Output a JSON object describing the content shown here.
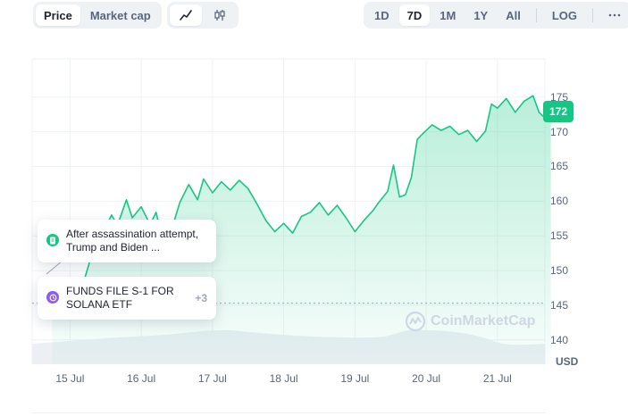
{
  "toolbar": {
    "view_tabs": [
      {
        "label": "Price",
        "active": true
      },
      {
        "label": "Market cap",
        "active": false
      }
    ],
    "chart_types": [
      {
        "icon": "line-chart-icon",
        "active": true
      },
      {
        "icon": "candlestick-icon",
        "active": false
      }
    ],
    "ranges": [
      {
        "label": "1D",
        "active": false
      },
      {
        "label": "7D",
        "active": true
      },
      {
        "label": "1M",
        "active": false
      },
      {
        "label": "1Y",
        "active": false
      },
      {
        "label": "All",
        "active": false
      }
    ],
    "log_label": "LOG",
    "more_icon": "more-dots-icon"
  },
  "news": [
    {
      "icon": "document-icon",
      "icon_color": "#16c784",
      "text": "After assassination attempt, Trump and Biden ..."
    },
    {
      "icon": "clock-icon",
      "icon_color": "#8b5cf6",
      "text": "FUNDS FILE S-1 FOR SOLANA ETF",
      "more": "+3"
    }
  ],
  "watermark": "CoinMarketCap",
  "current_price": "172",
  "currency": "USD",
  "colors": {
    "accent": "#16c784",
    "text_muted": "#58667e",
    "grid": "#eff2f5"
  },
  "chart_data": {
    "type": "area",
    "title": "",
    "xlabel": "",
    "ylabel": "",
    "x_ticks": [
      "15 Jul",
      "16 Jul",
      "17 Jul",
      "18 Jul",
      "19 Jul",
      "20 Jul",
      "21 Jul"
    ],
    "y_ticks": [
      140,
      145,
      150,
      155,
      160,
      165,
      170,
      175
    ],
    "ylim": [
      136.5,
      180.5
    ],
    "reference_line": 145.3,
    "current_value": 172,
    "series": [
      {
        "x": [
          "2024-07-14 18:00",
          "2024-07-14 19:00",
          "2024-07-14 21:00",
          "2024-07-15 00:00",
          "2024-07-15 04:00",
          "2024-07-15 07:00",
          "2024-07-15 09:00",
          "2024-07-15 12:00",
          "2024-07-15 14:00",
          "2024-07-15 16:00",
          "2024-07-15 19:00",
          "2024-07-15 21:00",
          "2024-07-16 00:00",
          "2024-07-16 03:00",
          "2024-07-16 05:00",
          "2024-07-16 07:00",
          "2024-07-16 10:00",
          "2024-07-16 13:00",
          "2024-07-16 16:00",
          "2024-07-16 19:00",
          "2024-07-16 21:00",
          "2024-07-17 00:00",
          "2024-07-17 03:00",
          "2024-07-17 06:00",
          "2024-07-17 09:00",
          "2024-07-17 12:00",
          "2024-07-17 15:00",
          "2024-07-17 18:00",
          "2024-07-17 21:00",
          "2024-07-18 00:00",
          "2024-07-18 03:00",
          "2024-07-18 06:00",
          "2024-07-18 09:00",
          "2024-07-18 12:00",
          "2024-07-18 15:00",
          "2024-07-18 18:00",
          "2024-07-18 21:00",
          "2024-07-19 00:00",
          "2024-07-19 03:00",
          "2024-07-19 06:00",
          "2024-07-19 08:00",
          "2024-07-19 11:00",
          "2024-07-19 13:00",
          "2024-07-19 15:00",
          "2024-07-19 17:00",
          "2024-07-19 19:00",
          "2024-07-19 21:00",
          "2024-07-19 23:00",
          "2024-07-20 02:00",
          "2024-07-20 05:00",
          "2024-07-20 08:00",
          "2024-07-20 11:00",
          "2024-07-20 14:00",
          "2024-07-20 17:00",
          "2024-07-20 20:00",
          "2024-07-20 22:00",
          "2024-07-21 00:00",
          "2024-07-21 03:00",
          "2024-07-21 06:00",
          "2024-07-21 09:00",
          "2024-07-21 12:00",
          "2024-07-21 14:00",
          "2024-07-21 16:00",
          "2024-07-21 18:00"
        ],
        "y": [
          147,
          146.2,
          145.6,
          144.8,
          147.5,
          151.8,
          153.8,
          156.2,
          158,
          156.5,
          160.2,
          157.6,
          159.2,
          156.6,
          158.4,
          154.8,
          155.6,
          159.8,
          162.4,
          160.2,
          163.2,
          161.2,
          162.8,
          161.6,
          163,
          161.8,
          159.6,
          157.2,
          155.6,
          156.8,
          155.4,
          157.8,
          158.4,
          159.8,
          158,
          159.4,
          157.6,
          155.6,
          157.2,
          158.6,
          159.8,
          161.4,
          165.2,
          160.6,
          160.9,
          163.4,
          168.9,
          169.8,
          171,
          170.2,
          170.8,
          169.6,
          170.2,
          168.6,
          170.1,
          174,
          173.4,
          174.8,
          172.8,
          174.4,
          175.2,
          172.8,
          172,
          172.2
        ]
      }
    ]
  }
}
